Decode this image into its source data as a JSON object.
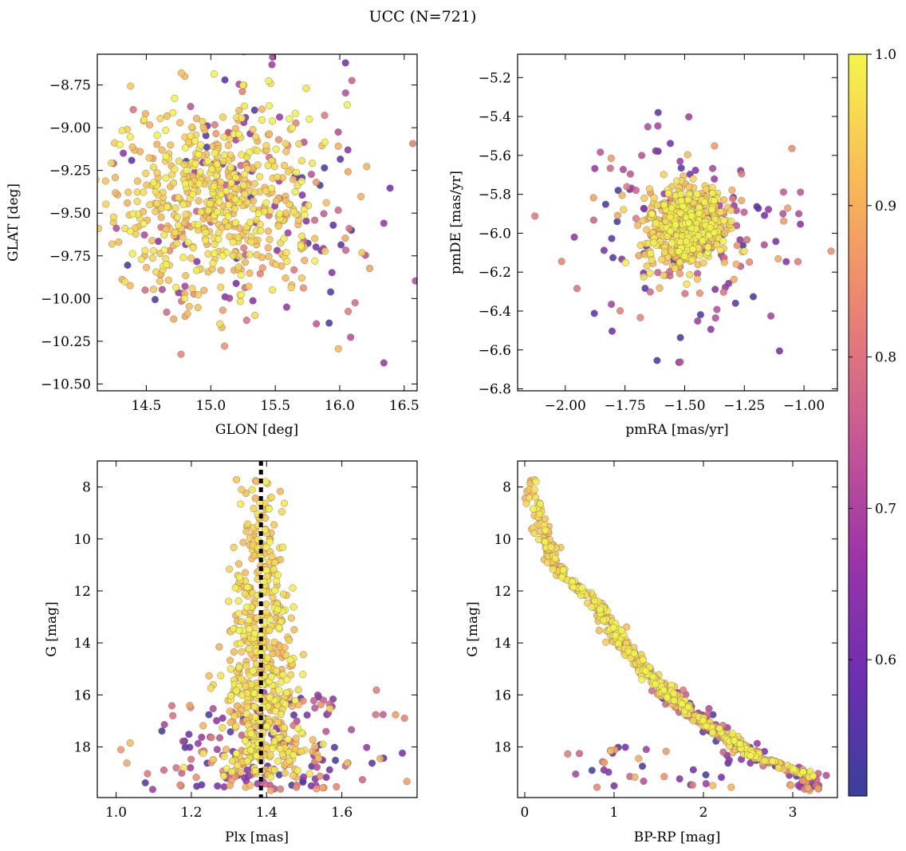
{
  "figure": {
    "title": "UCC (N=721)"
  },
  "colorbar": {
    "cmap": "plasma",
    "range": [
      0.51,
      1.0
    ],
    "ticks": [
      0.6,
      0.7,
      0.8,
      0.9,
      1.0
    ],
    "tick_labels": [
      "0.6",
      "0.7",
      "0.8",
      "0.9",
      "1.0"
    ]
  },
  "chart_data": [
    {
      "type": "scatter",
      "id": "glon-glat",
      "xlabel": "GLON [deg]",
      "ylabel": "GLAT [deg]",
      "xlim": [
        14.12,
        16.6
      ],
      "ylim": [
        -10.54,
        -8.57
      ],
      "y_inverted": false,
      "xticks": [
        14.5,
        15.0,
        15.5,
        16.0,
        16.5
      ],
      "xtick_labels": [
        "14.5",
        "15.0",
        "15.5",
        "16.0",
        "16.5"
      ],
      "yticks": [
        -8.75,
        -9.0,
        -9.25,
        -9.5,
        -9.75,
        -10.0,
        -10.25,
        -10.5
      ],
      "ytick_labels": [
        "−8.75",
        "−9.00",
        "−9.25",
        "−9.50",
        "−9.75",
        "−10.00",
        "−10.25",
        "−10.50"
      ],
      "dist": {
        "core": [
          15.0,
          -9.42,
          0.42,
          0.28
        ],
        "halo": [
          15.3,
          -9.5,
          0.6,
          0.38
        ]
      },
      "n_points": 721
    },
    {
      "type": "scatter",
      "id": "pm",
      "xlabel": "pmRA [mas/yr]",
      "ylabel": "pmDE [mas/yr]",
      "xlim": [
        -2.2,
        -0.86
      ],
      "ylim": [
        -6.81,
        -5.08
      ],
      "y_inverted": false,
      "xticks": [
        -2.0,
        -1.75,
        -1.5,
        -1.25,
        -1.0
      ],
      "xtick_labels": [
        "−2.00",
        "−1.75",
        "−1.50",
        "−1.25",
        "−1.00"
      ],
      "yticks": [
        -5.2,
        -5.4,
        -5.6,
        -5.8,
        -6.0,
        -6.2,
        -6.4,
        -6.6,
        -6.8
      ],
      "ytick_labels": [
        "−5.2",
        "−5.4",
        "−5.6",
        "−5.8",
        "−6.0",
        "−6.2",
        "−6.4",
        "−6.6",
        "−6.8"
      ],
      "dist": {
        "core": [
          -1.49,
          -5.97,
          0.08,
          0.1
        ],
        "halo": [
          -1.5,
          -6.0,
          0.22,
          0.25
        ]
      },
      "n_points": 721
    },
    {
      "type": "scatter",
      "id": "plx-g",
      "xlabel": "Plx [mas]",
      "ylabel": "G [mag]",
      "xlim": [
        0.95,
        1.8
      ],
      "ylim": [
        19.95,
        7.0
      ],
      "y_inverted": true,
      "xticks": [
        1.0,
        1.2,
        1.4,
        1.6
      ],
      "xtick_labels": [
        "1.0",
        "1.2",
        "1.4",
        "1.6"
      ],
      "yticks": [
        8,
        10,
        12,
        14,
        16,
        18
      ],
      "ytick_labels": [
        "8",
        "10",
        "12",
        "14",
        "16",
        "18"
      ],
      "vline": {
        "x": 1.385,
        "style": "dotted"
      },
      "n_points": 721
    },
    {
      "type": "scatter",
      "id": "cmd",
      "xlabel": "BP-RP [mag]",
      "ylabel": "G [mag]",
      "xlim": [
        -0.08,
        3.5
      ],
      "ylim": [
        19.95,
        7.0
      ],
      "y_inverted": true,
      "xticks": [
        0,
        1,
        2,
        3
      ],
      "xtick_labels": [
        "0",
        "1",
        "2",
        "3"
      ],
      "yticks": [
        8,
        10,
        12,
        14,
        16,
        18
      ],
      "ytick_labels": [
        "8",
        "10",
        "12",
        "14",
        "16",
        "18"
      ],
      "sequence": [
        [
          0.08,
          8.0
        ],
        [
          0.2,
          9.6
        ],
        [
          0.3,
          11.0
        ],
        [
          0.6,
          11.9
        ],
        [
          0.9,
          12.9
        ],
        [
          1.1,
          14.1
        ],
        [
          1.35,
          15.0
        ],
        [
          1.6,
          16.0
        ],
        [
          1.9,
          16.8
        ],
        [
          2.3,
          17.7
        ],
        [
          2.6,
          18.4
        ],
        [
          3.2,
          19.1
        ]
      ],
      "n_points": 721
    }
  ]
}
